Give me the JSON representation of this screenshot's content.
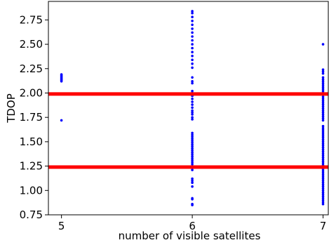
{
  "chart_data": {
    "type": "scatter",
    "title": "",
    "xlabel": "number of visible satellites",
    "ylabel": "TDOP",
    "xlim": [
      4.9,
      7.04
    ],
    "ylim": [
      0.75,
      2.94
    ],
    "x_ticks": [
      5,
      6,
      7
    ],
    "x_tick_labels": [
      "5",
      "6",
      "7"
    ],
    "y_ticks": [
      0.75,
      1.0,
      1.25,
      1.5,
      1.75,
      2.0,
      2.25,
      2.5,
      2.75
    ],
    "y_tick_labels": [
      "0.75",
      "1.00",
      "1.25",
      "1.50",
      "1.75",
      "2.00",
      "2.25",
      "2.50",
      "2.75"
    ],
    "grid": false,
    "point_color": "#0000ff",
    "series": [
      {
        "x": 5,
        "values": [
          1.72,
          2.12,
          2.13,
          2.14,
          2.15,
          2.16,
          2.17,
          2.18,
          2.19
        ]
      },
      {
        "x": 6,
        "values": [
          0.85,
          0.86,
          0.91,
          0.92,
          1.04,
          1.08,
          1.1,
          1.12,
          1.21,
          1.23,
          1.25,
          1.27,
          1.29,
          1.31,
          1.33,
          1.35,
          1.37,
          1.39,
          1.41,
          1.43,
          1.45,
          1.47,
          1.49,
          1.51,
          1.53,
          1.55,
          1.57,
          1.59,
          1.73,
          1.75,
          1.78,
          1.8,
          1.82,
          1.85,
          1.88,
          1.91,
          1.94,
          1.97,
          2.0,
          2.02,
          2.1,
          2.12,
          2.16,
          2.26,
          2.3,
          2.34,
          2.38,
          2.42,
          2.46,
          2.5,
          2.54,
          2.58,
          2.62,
          2.66,
          2.7,
          2.74,
          2.78,
          2.82,
          2.84
        ]
      },
      {
        "x": 7,
        "values": [
          0.86,
          0.88,
          0.9,
          0.92,
          0.94,
          0.96,
          0.98,
          1.0,
          1.02,
          1.04,
          1.06,
          1.08,
          1.1,
          1.12,
          1.14,
          1.16,
          1.18,
          1.2,
          1.22,
          1.24,
          1.26,
          1.28,
          1.3,
          1.32,
          1.34,
          1.36,
          1.38,
          1.4,
          1.42,
          1.44,
          1.46,
          1.48,
          1.5,
          1.52,
          1.54,
          1.56,
          1.58,
          1.6,
          1.62,
          1.64,
          1.66,
          1.72,
          1.74,
          1.76,
          1.78,
          1.8,
          1.82,
          1.84,
          1.86,
          1.88,
          1.9,
          1.92,
          1.94,
          1.96,
          1.98,
          2.0,
          2.02,
          2.04,
          2.06,
          2.08,
          2.1,
          2.12,
          2.14,
          2.16,
          2.2,
          2.22,
          2.24,
          2.5
        ]
      }
    ],
    "reference_lines": [
      {
        "y": 1.24,
        "color": "#ff0000"
      },
      {
        "y": 1.99,
        "color": "#ff0000"
      }
    ]
  }
}
